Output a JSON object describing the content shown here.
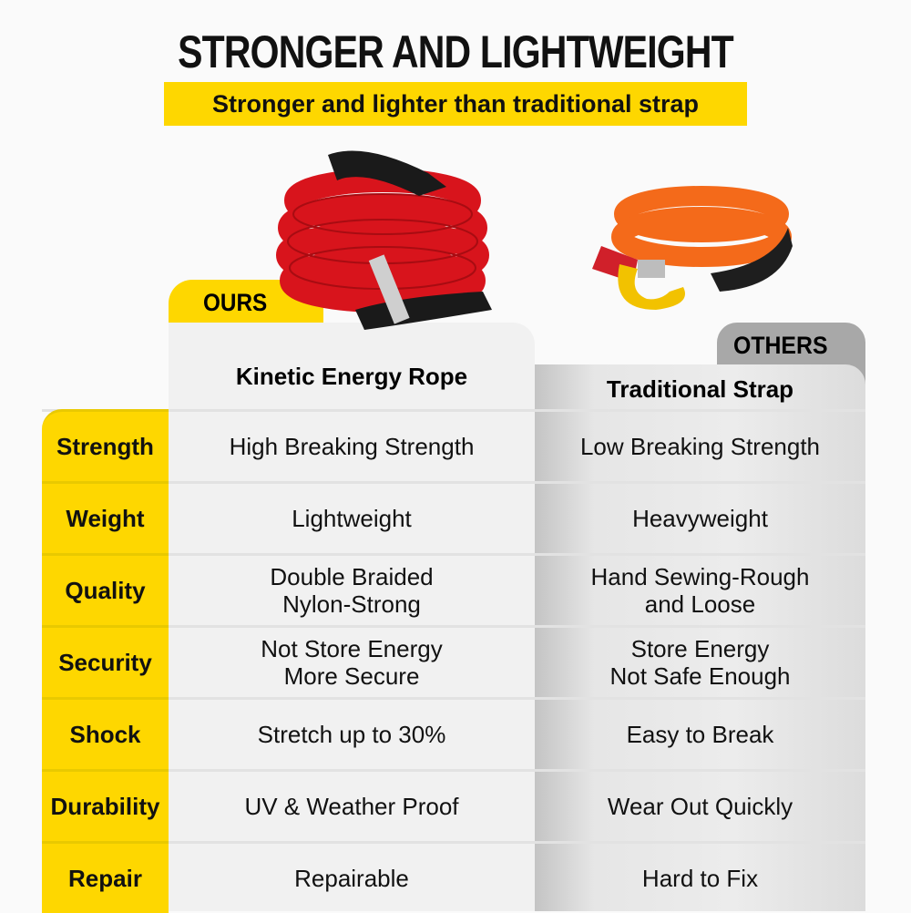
{
  "title": "STRONGER AND LIGHTWEIGHT",
  "subtitle": "Stronger and lighter than traditional strap",
  "ours": {
    "tab": "OURS",
    "name": "Kinetic Energy Rope"
  },
  "others": {
    "tab": "OTHERS",
    "name": "Traditional Strap"
  },
  "colors": {
    "accent": "#fed700",
    "others": "#a8a8a8"
  },
  "rows": [
    {
      "label": "Strength",
      "ours": "High Breaking Strength",
      "others": "Low Breaking Strength"
    },
    {
      "label": "Weight",
      "ours": "Lightweight",
      "others": "Heavyweight"
    },
    {
      "label": "Quality",
      "ours": "Double Braided\nNylon-Strong",
      "others": "Hand Sewing-Rough\nand Loose"
    },
    {
      "label": "Security",
      "ours": "Not Store Energy\nMore Secure",
      "others": "Store Energy\nNot Safe Enough"
    },
    {
      "label": "Shock",
      "ours": "Stretch up to 30%",
      "others": "Easy to Break"
    },
    {
      "label": "Durability",
      "ours": "UV & Weather Proof",
      "others": "Wear Out Quickly"
    },
    {
      "label": "Repair",
      "ours": "Repairable",
      "others": "Hard to Fix"
    }
  ]
}
